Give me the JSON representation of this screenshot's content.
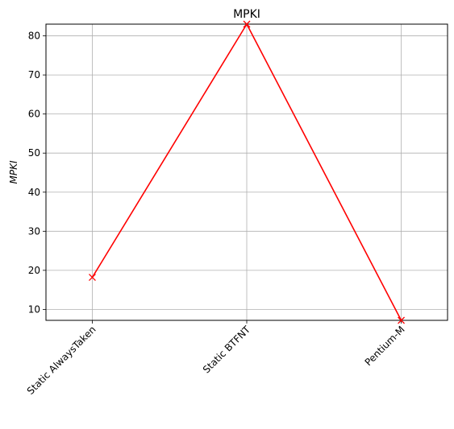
{
  "chart_data": {
    "type": "line",
    "title": "MPKI",
    "xlabel": "",
    "ylabel": "MPKI",
    "categories": [
      "Static AlwaysTaken",
      "Static BTFNT",
      "Pentium-M"
    ],
    "series": [
      {
        "values": [
          18.2,
          83.0,
          7.2
        ],
        "color": "#ff0000",
        "marker": "x"
      }
    ],
    "ylim": [
      7.2,
      83.0
    ],
    "yticks": [
      10,
      20,
      30,
      40,
      50,
      60,
      70,
      80
    ],
    "grid": true,
    "x_tick_rotation_deg": 45
  }
}
